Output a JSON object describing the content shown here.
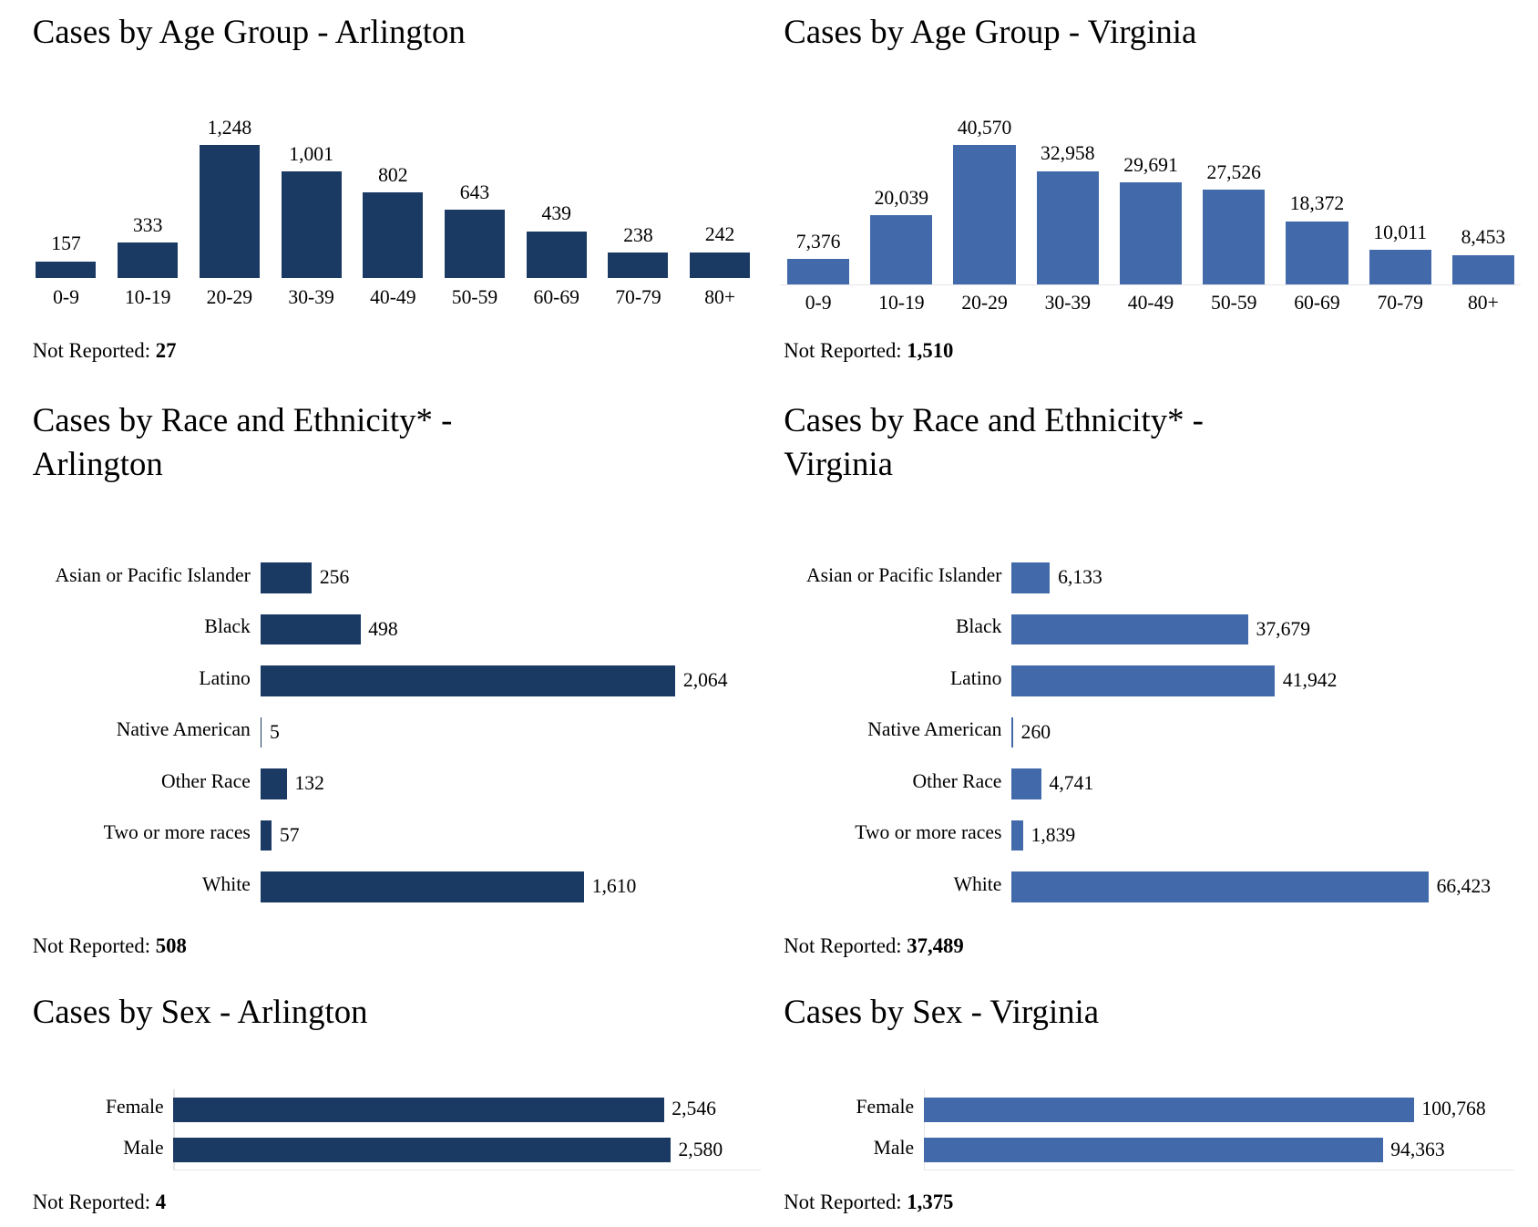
{
  "colors": {
    "arlington": "#1a3a63",
    "virginia": "#426aab"
  },
  "chart_data": [
    {
      "id": "age-arlington",
      "type": "bar",
      "orientation": "vertical",
      "title": "Cases by Age Group - Arlington",
      "categories": [
        "0-9",
        "10-19",
        "20-29",
        "30-39",
        "40-49",
        "50-59",
        "60-69",
        "70-79",
        "80+"
      ],
      "values": [
        157,
        333,
        1248,
        1001,
        802,
        643,
        439,
        238,
        242
      ],
      "value_labels": [
        "157",
        "333",
        "1,248",
        "1,001",
        "802",
        "643",
        "439",
        "238",
        "242"
      ],
      "not_reported_label": "Not Reported:",
      "not_reported": "27",
      "color": "#1a3a63"
    },
    {
      "id": "age-virginia",
      "type": "bar",
      "orientation": "vertical",
      "title": "Cases by Age Group - Virginia",
      "categories": [
        "0-9",
        "10-19",
        "20-29",
        "30-39",
        "40-49",
        "50-59",
        "60-69",
        "70-79",
        "80+"
      ],
      "values": [
        7376,
        20039,
        40570,
        32958,
        29691,
        27526,
        18372,
        10011,
        8453
      ],
      "value_labels": [
        "7,376",
        "20,039",
        "40,570",
        "32,958",
        "29,691",
        "27,526",
        "18,372",
        "10,011",
        "8,453"
      ],
      "not_reported_label": "Not Reported:",
      "not_reported": "1,510",
      "color": "#426aab"
    },
    {
      "id": "race-arlington",
      "type": "bar",
      "orientation": "horizontal",
      "title": "Cases by Race and Ethnicity* - Arlington",
      "categories": [
        "Asian or Pacific Islander",
        "Black",
        "Latino",
        "Native American",
        "Other Race",
        "Two or more races",
        "White"
      ],
      "values": [
        256,
        498,
        2064,
        5,
        132,
        57,
        1610
      ],
      "value_labels": [
        "256",
        "498",
        "2,064",
        "5",
        "132",
        "57",
        "1,610"
      ],
      "not_reported_label": "Not Reported:",
      "not_reported": "508",
      "color": "#1a3a63"
    },
    {
      "id": "race-virginia",
      "type": "bar",
      "orientation": "horizontal",
      "title": "Cases by Race and Ethnicity* - Virginia",
      "categories": [
        "Asian or Pacific Islander",
        "Black",
        "Latino",
        "Native American",
        "Other Race",
        "Two or more races",
        "White"
      ],
      "values": [
        6133,
        37679,
        41942,
        260,
        4741,
        1839,
        66423
      ],
      "value_labels": [
        "6,133",
        "37,679",
        "41,942",
        "260",
        "4,741",
        "1,839",
        "66,423"
      ],
      "not_reported_label": "Not Reported:",
      "not_reported": "37,489",
      "color": "#426aab"
    },
    {
      "id": "sex-arlington",
      "type": "bar",
      "orientation": "horizontal",
      "title": "Cases by Sex - Arlington",
      "categories": [
        "Female",
        "Male"
      ],
      "values": [
        2546,
        2580
      ],
      "value_labels": [
        "2,546",
        "2,580"
      ],
      "not_reported_label": "Not Reported:",
      "not_reported": "4",
      "color": "#1a3a63"
    },
    {
      "id": "sex-virginia",
      "type": "bar",
      "orientation": "horizontal",
      "title": "Cases by Sex - Virginia",
      "categories": [
        "Female",
        "Male"
      ],
      "values": [
        100768,
        94363
      ],
      "value_labels": [
        "100,768",
        "94,363"
      ],
      "not_reported_label": "Not Reported:",
      "not_reported": "1,375",
      "color": "#426aab"
    }
  ]
}
